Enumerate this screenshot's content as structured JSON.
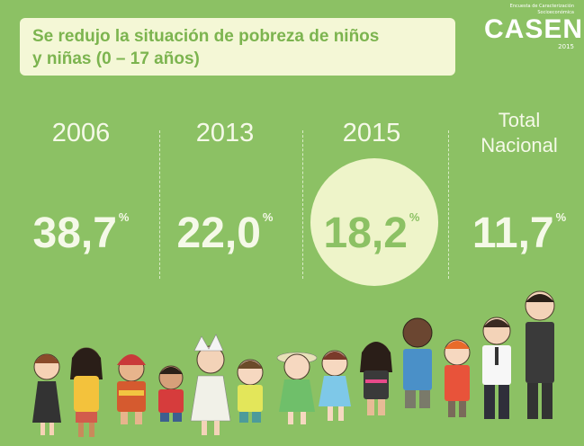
{
  "title": {
    "line1": "Se redujo la situación de pobreza de niños",
    "line2": "y niñas (0 – 17 años)"
  },
  "logo": {
    "subtitle": "Encuesta de Caracterización Socioeconómica",
    "brand": "CASEN",
    "year": "2015"
  },
  "stats": [
    {
      "label": "2006",
      "value": "38,7",
      "unit": "%"
    },
    {
      "label": "2013",
      "value": "22,0",
      "unit": "%"
    },
    {
      "label": "2015",
      "value": "18,2",
      "unit": "%"
    },
    {
      "label_line1": "Total",
      "label_line2": "Nacional",
      "value": "11,7",
      "unit": "%"
    }
  ],
  "colors": {
    "background": "#8cc164",
    "title_box": "#f4f7d6",
    "title_text": "#7cb44f",
    "highlight_circle": "#eef4c9",
    "stat_text": "#f5f9e8"
  }
}
